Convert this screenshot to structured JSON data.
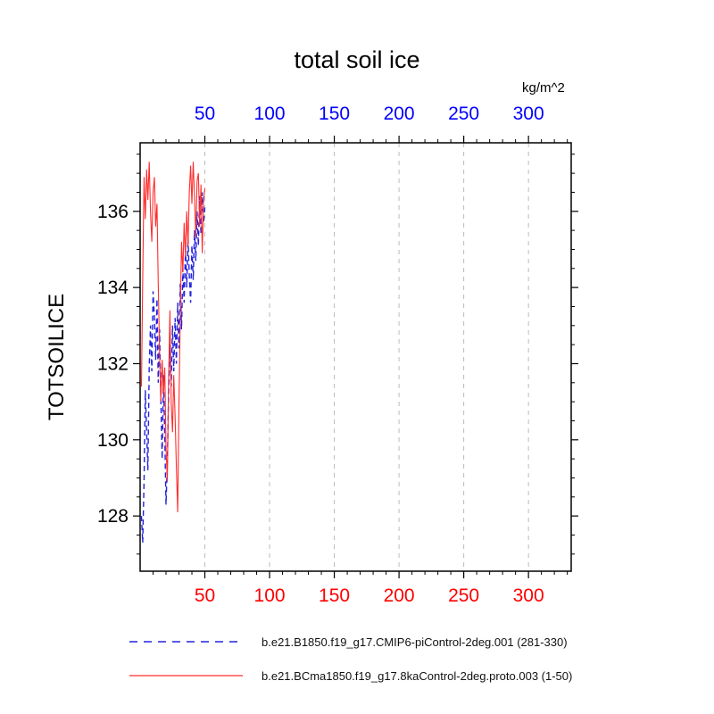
{
  "chart_data": {
    "type": "line",
    "title": "total soil ice",
    "units": "kg/m^2",
    "ylabel": "TOTSOILICE",
    "xlim": [
      0,
      333
    ],
    "ylim": [
      126.55,
      137.8
    ],
    "x_ticks": [
      50,
      100,
      150,
      200,
      250,
      300
    ],
    "x_minor_step": 10,
    "y_ticks": [
      128,
      130,
      132,
      134,
      136
    ],
    "y_minor_step": 0.5,
    "grid": "vertical-dashed",
    "legend_position": "bottom",
    "colors": {
      "grid": "#bbbbbb",
      "frame": "#000000",
      "top_tick_labels": "#0000ff",
      "bottom_tick_labels": "#ff0000",
      "left_tick_labels": "#000000"
    },
    "series": [
      {
        "name": "b.e21.B1850.f19_g17.CMIP6-piControl-2deg.001 (281-330)",
        "color": "#2222dd",
        "style": "dashed",
        "x": [
          1,
          2,
          3,
          4,
          5,
          6,
          7,
          8,
          9,
          10,
          11,
          12,
          13,
          14,
          15,
          16,
          17,
          18,
          19,
          20,
          21,
          22,
          23,
          24,
          25,
          26,
          27,
          28,
          29,
          30,
          31,
          32,
          33,
          34,
          35,
          36,
          37,
          38,
          39,
          40,
          41,
          42,
          43,
          44,
          45,
          46,
          47,
          48,
          49,
          50
        ],
        "values": [
          128.0,
          127.3,
          128.9,
          131.3,
          130.2,
          129.2,
          131.9,
          133.0,
          131.8,
          133.9,
          133.2,
          132.1,
          133.7,
          131.5,
          132.9,
          131.1,
          129.5,
          131.7,
          130.1,
          128.3,
          129.4,
          131.2,
          132.5,
          131.4,
          133.0,
          131.8,
          133.2,
          132.0,
          133.6,
          132.4,
          134.1,
          132.9,
          134.5,
          133.6,
          135.0,
          134.0,
          135.3,
          134.3,
          133.6,
          135.1,
          134.2,
          135.5,
          134.7,
          136.0,
          135.1,
          136.4,
          135.4,
          136.5,
          135.7,
          136.1
        ]
      },
      {
        "name": "b.e21.BCma1850.f19_g17.8kaControl-2deg.proto.003 (1-50)",
        "color": "#ff2d2d",
        "style": "solid",
        "x": [
          1,
          2,
          3,
          4,
          5,
          6,
          7,
          8,
          9,
          10,
          11,
          12,
          13,
          14,
          15,
          16,
          17,
          18,
          19,
          20,
          21,
          22,
          23,
          24,
          25,
          26,
          27,
          28,
          29,
          30,
          31,
          32,
          33,
          34,
          35,
          36,
          37,
          38,
          39,
          40,
          41,
          42,
          43,
          44,
          45,
          46,
          47,
          48,
          49,
          50
        ],
        "values": [
          131.4,
          134.2,
          136.9,
          135.8,
          137.1,
          136.3,
          137.3,
          136.0,
          135.2,
          136.5,
          136.9,
          135.6,
          136.2,
          134.1,
          132.3,
          131.0,
          132.1,
          131.2,
          131.9,
          129.8,
          128.9,
          131.6,
          133.4,
          131.0,
          130.2,
          131.7,
          130.6,
          129.3,
          128.1,
          130.9,
          133.3,
          135.2,
          134.4,
          135.7,
          134.8,
          136.0,
          135.1,
          136.5,
          137.2,
          136.2,
          137.3,
          136.4,
          135.3,
          136.8,
          137.0,
          135.6,
          136.7,
          134.9,
          136.3,
          136.6
        ]
      }
    ]
  }
}
